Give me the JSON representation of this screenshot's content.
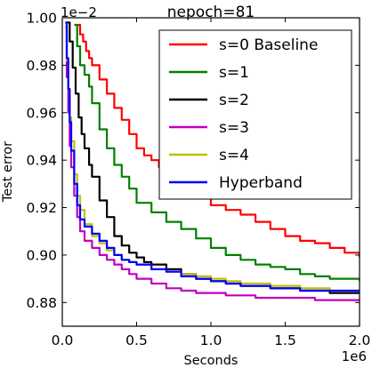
{
  "chart_data": {
    "type": "line",
    "title": "nepoch=81",
    "xlabel": "Seconds",
    "ylabel": "Test error",
    "x_offset_label": "1e6",
    "y_offset_label": "1e−2",
    "xlim": [
      0.0,
      2.0
    ],
    "ylim": [
      0.87,
      1.0
    ],
    "x_scale": 1000000,
    "y_scale": 0.01,
    "xticks": [
      "0.0",
      "0.5",
      "1.0",
      "1.5",
      "2.0"
    ],
    "yticks": [
      "0.88",
      "0.90",
      "0.92",
      "0.94",
      "0.96",
      "0.98",
      "1.00"
    ],
    "grid": false,
    "legend_position": "top-right",
    "series": [
      {
        "name": "s=0 Baseline",
        "color": "#ff0000",
        "x": [
          0.1,
          0.12,
          0.14,
          0.16,
          0.18,
          0.2,
          0.25,
          0.3,
          0.35,
          0.4,
          0.45,
          0.5,
          0.55,
          0.6,
          0.65,
          0.7,
          0.75,
          0.8,
          0.9,
          1.0,
          1.1,
          1.2,
          1.3,
          1.4,
          1.5,
          1.6,
          1.7,
          1.8,
          1.9,
          2.0
        ],
        "y": [
          0.997,
          0.993,
          0.99,
          0.986,
          0.983,
          0.98,
          0.974,
          0.968,
          0.962,
          0.957,
          0.951,
          0.945,
          0.942,
          0.94,
          0.937,
          0.933,
          0.929,
          0.927,
          0.924,
          0.921,
          0.919,
          0.917,
          0.914,
          0.911,
          0.908,
          0.906,
          0.905,
          0.903,
          0.901,
          0.899
        ]
      },
      {
        "name": "s=1",
        "color": "#008000",
        "x": [
          0.08,
          0.1,
          0.12,
          0.15,
          0.18,
          0.2,
          0.25,
          0.3,
          0.35,
          0.4,
          0.45,
          0.5,
          0.6,
          0.7,
          0.8,
          0.9,
          1.0,
          1.1,
          1.2,
          1.3,
          1.4,
          1.5,
          1.6,
          1.7,
          1.8,
          1.9,
          2.0
        ],
        "y": [
          0.997,
          0.988,
          0.98,
          0.976,
          0.971,
          0.964,
          0.953,
          0.945,
          0.938,
          0.933,
          0.928,
          0.922,
          0.918,
          0.914,
          0.911,
          0.907,
          0.903,
          0.9,
          0.898,
          0.896,
          0.895,
          0.894,
          0.892,
          0.891,
          0.89,
          0.89,
          0.889
        ]
      },
      {
        "name": "s=2",
        "color": "#000000",
        "x": [
          0.03,
          0.05,
          0.07,
          0.09,
          0.11,
          0.13,
          0.15,
          0.18,
          0.2,
          0.25,
          0.3,
          0.35,
          0.4,
          0.45,
          0.5,
          0.55,
          0.6,
          0.7,
          0.8,
          0.9,
          1.0,
          1.1,
          1.2,
          1.3,
          1.4,
          1.5,
          1.6,
          1.7,
          1.8,
          1.9,
          2.0
        ],
        "y": [
          0.998,
          0.99,
          0.979,
          0.968,
          0.958,
          0.951,
          0.945,
          0.938,
          0.933,
          0.923,
          0.916,
          0.908,
          0.904,
          0.901,
          0.899,
          0.897,
          0.896,
          0.894,
          0.892,
          0.89,
          0.889,
          0.888,
          0.887,
          0.887,
          0.886,
          0.886,
          0.885,
          0.885,
          0.884,
          0.884,
          0.884
        ]
      },
      {
        "name": "s=3",
        "color": "#bf00bf",
        "x": [
          0.02,
          0.03,
          0.04,
          0.05,
          0.06,
          0.08,
          0.1,
          0.12,
          0.15,
          0.2,
          0.25,
          0.3,
          0.35,
          0.4,
          0.45,
          0.5,
          0.6,
          0.7,
          0.8,
          0.9,
          1.0,
          1.1,
          1.2,
          1.3,
          1.4,
          1.5,
          1.6,
          1.7,
          1.8,
          1.9,
          2.0
        ],
        "y": [
          0.996,
          0.975,
          0.96,
          0.946,
          0.937,
          0.925,
          0.916,
          0.91,
          0.906,
          0.903,
          0.9,
          0.898,
          0.896,
          0.894,
          0.892,
          0.89,
          0.888,
          0.886,
          0.885,
          0.884,
          0.884,
          0.883,
          0.883,
          0.882,
          0.882,
          0.882,
          0.882,
          0.881,
          0.881,
          0.881,
          0.881
        ]
      },
      {
        "name": "s=4",
        "color": "#bfbf00",
        "x": [
          0.02,
          0.03,
          0.04,
          0.05,
          0.06,
          0.08,
          0.1,
          0.12,
          0.15,
          0.2,
          0.25,
          0.3,
          0.35,
          0.4,
          0.45,
          0.5,
          0.6,
          0.7,
          0.8,
          0.9,
          1.0,
          1.1,
          1.2,
          1.3,
          1.4,
          1.5,
          1.6,
          1.7,
          1.8,
          1.9,
          2.0
        ],
        "y": [
          0.998,
          0.982,
          0.97,
          0.958,
          0.948,
          0.934,
          0.925,
          0.919,
          0.913,
          0.908,
          0.905,
          0.902,
          0.9,
          0.898,
          0.897,
          0.896,
          0.894,
          0.893,
          0.892,
          0.891,
          0.89,
          0.889,
          0.888,
          0.888,
          0.887,
          0.887,
          0.886,
          0.886,
          0.885,
          0.885,
          0.885
        ]
      },
      {
        "name": "Hyperband",
        "color": "#0000ff",
        "x": [
          0.02,
          0.03,
          0.04,
          0.05,
          0.06,
          0.08,
          0.1,
          0.12,
          0.15,
          0.2,
          0.25,
          0.3,
          0.35,
          0.4,
          0.45,
          0.5,
          0.6,
          0.7,
          0.8,
          0.9,
          1.0,
          1.1,
          1.2,
          1.3,
          1.4,
          1.5,
          1.6,
          1.7,
          1.8,
          1.9,
          2.0
        ],
        "y": [
          0.998,
          0.983,
          0.97,
          0.956,
          0.944,
          0.93,
          0.921,
          0.915,
          0.912,
          0.909,
          0.906,
          0.903,
          0.9,
          0.898,
          0.897,
          0.896,
          0.894,
          0.893,
          0.891,
          0.89,
          0.889,
          0.888,
          0.887,
          0.887,
          0.886,
          0.886,
          0.885,
          0.885,
          0.885,
          0.885,
          0.885
        ]
      }
    ]
  }
}
